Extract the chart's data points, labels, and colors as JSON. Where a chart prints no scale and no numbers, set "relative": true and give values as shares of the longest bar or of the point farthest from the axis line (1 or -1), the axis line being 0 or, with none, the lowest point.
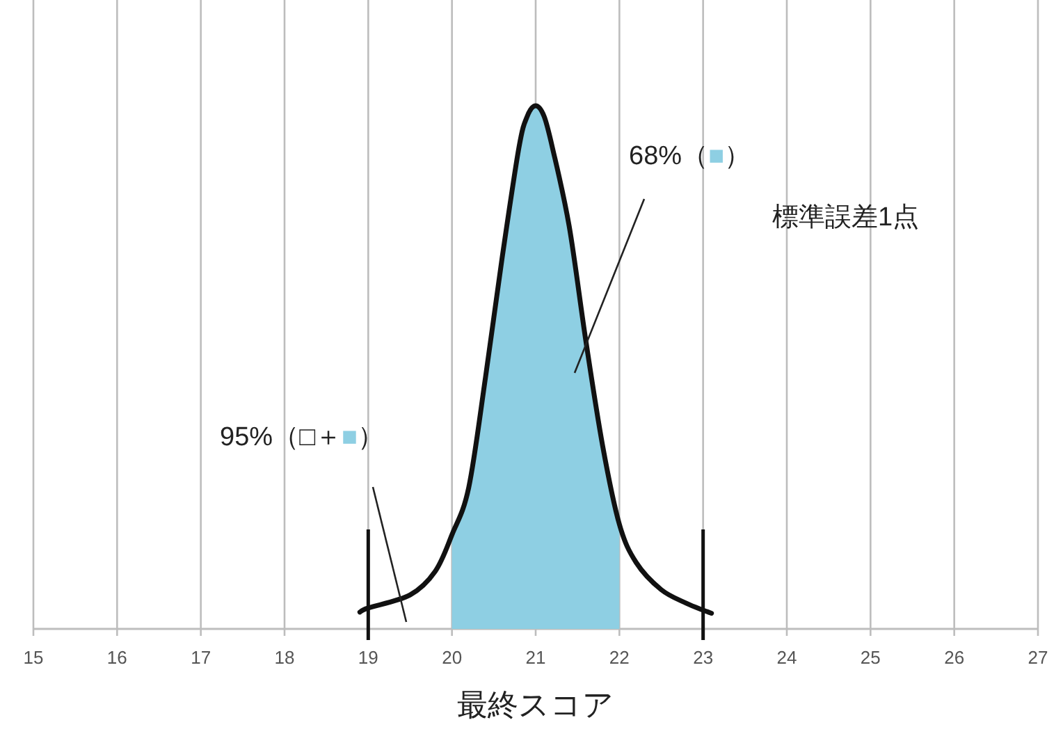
{
  "chart_data": {
    "type": "line",
    "relative": true,
    "xlabel": "最終スコア",
    "xlim": [
      15,
      27
    ],
    "xticks": [
      15,
      16,
      17,
      18,
      19,
      20,
      21,
      22,
      23,
      24,
      25,
      26,
      27
    ],
    "grid": "x",
    "marker": "none",
    "line_style": "solid",
    "series": [
      {
        "type": "area",
        "color": "#8ecfe3",
        "x": [
          20,
          20.2,
          20.4,
          20.6,
          20.8,
          20.9,
          21,
          21.1,
          21.2,
          21.4,
          21.6,
          21.8,
          22
        ],
        "values": [
          0.18,
          0.27,
          0.48,
          0.71,
          0.92,
          0.98,
          1.0,
          0.98,
          0.92,
          0.77,
          0.55,
          0.35,
          0.2
        ]
      },
      {
        "type": "line",
        "color": "#111111",
        "x": [
          18.9,
          19,
          19.5,
          19.8,
          20,
          20.2,
          20.4,
          20.6,
          20.8,
          20.9,
          21,
          21.1,
          21.2,
          21.4,
          21.6,
          21.8,
          22,
          22.2,
          22.5,
          22.8,
          23,
          23.1
        ],
        "values": [
          0.032,
          0.04,
          0.065,
          0.11,
          0.18,
          0.27,
          0.48,
          0.71,
          0.92,
          0.98,
          1.0,
          0.98,
          0.92,
          0.77,
          0.55,
          0.35,
          0.2,
          0.127,
          0.075,
          0.049,
          0.036,
          0.03
        ]
      }
    ],
    "ref_lines": [
      {
        "axis": "x",
        "value": 19,
        "color": "#111111"
      },
      {
        "axis": "x",
        "value": 23,
        "color": "#111111"
      }
    ],
    "annotations": [
      "68%（■）",
      "95%（□＋■）",
      "標準誤差1点"
    ]
  }
}
